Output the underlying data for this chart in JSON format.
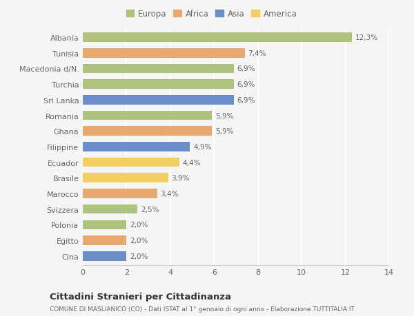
{
  "categories": [
    "Albania",
    "Tunisia",
    "Macedonia d/N.",
    "Turchia",
    "Sri Lanka",
    "Romania",
    "Ghana",
    "Filippine",
    "Ecuador",
    "Brasile",
    "Marocco",
    "Svizzera",
    "Polonia",
    "Egitto",
    "Cina"
  ],
  "values": [
    12.3,
    7.4,
    6.9,
    6.9,
    6.9,
    5.9,
    5.9,
    4.9,
    4.4,
    3.9,
    3.4,
    2.5,
    2.0,
    2.0,
    2.0
  ],
  "labels": [
    "12,3%",
    "7,4%",
    "6,9%",
    "6,9%",
    "6,9%",
    "5,9%",
    "5,9%",
    "4,9%",
    "4,4%",
    "3,9%",
    "3,4%",
    "2,5%",
    "2,0%",
    "2,0%",
    "2,0%"
  ],
  "continents": [
    "Europa",
    "Africa",
    "Europa",
    "Europa",
    "Asia",
    "Europa",
    "Africa",
    "Asia",
    "America",
    "America",
    "Africa",
    "Europa",
    "Europa",
    "Africa",
    "Asia"
  ],
  "colors": {
    "Europa": "#aec47e",
    "Africa": "#e8a870",
    "Asia": "#6b8ec8",
    "America": "#f0cf60"
  },
  "legend_order": [
    "Europa",
    "Africa",
    "Asia",
    "America"
  ],
  "xlim": [
    0,
    14
  ],
  "xticks": [
    0,
    2,
    4,
    6,
    8,
    10,
    12,
    14
  ],
  "title": "Cittadini Stranieri per Cittadinanza",
  "subtitle": "COMUNE DI MASLIANICO (CO) - Dati ISTAT al 1° gennaio di ogni anno - Elaborazione TUTTITALIA.IT",
  "background_color": "#f5f5f5",
  "grid_color": "#ffffff",
  "bar_height": 0.6
}
